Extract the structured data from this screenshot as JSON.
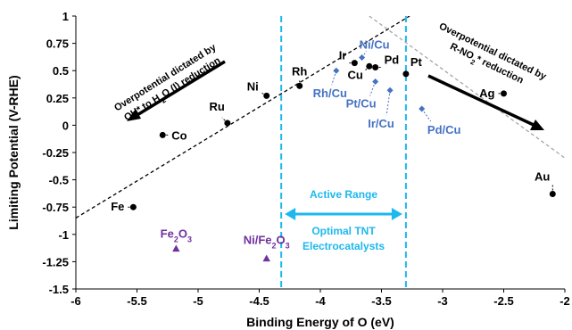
{
  "chart_data": {
    "type": "scatter",
    "xlabel": "Binding Energy of O (eV)",
    "ylabel": "Limiting Potential (V-RHE)",
    "xlim": [
      -6,
      -2
    ],
    "ylim": [
      -1.5,
      1
    ],
    "x_ticks": [
      "-6",
      "-5.5",
      "-5",
      "-4.5",
      "-4",
      "-3.5",
      "-3",
      "-2.5",
      "-2"
    ],
    "y_ticks": [
      "1",
      "0.75",
      "0.5",
      "0.25",
      "0",
      "-0.25",
      "-0.5",
      "-0.75",
      "-1",
      "-1.25",
      "-1.5"
    ],
    "grid": false,
    "colors": {
      "metal": "#000000",
      "alloy": "#4472C4",
      "oxide": "#7030A0",
      "range": "#1DB8EE",
      "right_line": "#A6A6A6"
    },
    "series": [
      {
        "marker": "circle",
        "color": "#000000",
        "points": [
          {
            "label": "Fe",
            "x": -5.53,
            "y": -0.75
          },
          {
            "label": "Co",
            "x": -5.29,
            "y": -0.09
          },
          {
            "label": "Ru",
            "x": -4.76,
            "y": 0.02
          },
          {
            "label": "Ni",
            "x": -4.44,
            "y": 0.27
          },
          {
            "label": "Rh",
            "x": -4.17,
            "y": 0.36
          },
          {
            "label": "Ir",
            "x": -3.72,
            "y": 0.57
          },
          {
            "label": "Cu",
            "x": -3.6,
            "y": 0.54
          },
          {
            "label": "Pd",
            "x": -3.55,
            "y": 0.53
          },
          {
            "label": "Pt",
            "x": -3.3,
            "y": 0.47
          },
          {
            "label": "Ag",
            "x": -2.5,
            "y": 0.29
          },
          {
            "label": "Au",
            "x": -2.1,
            "y": -0.63
          }
        ]
      },
      {
        "marker": "diamond",
        "color": "#4472C4",
        "points": [
          {
            "label": "Rh/Cu",
            "x": -3.87,
            "y": 0.5
          },
          {
            "label": "Ni/Cu",
            "x": -3.66,
            "y": 0.62
          },
          {
            "label": "Pt/Cu",
            "x": -3.55,
            "y": 0.4
          },
          {
            "label": "Ir/Cu",
            "x": -3.43,
            "y": 0.32
          },
          {
            "label": "Pd/Cu",
            "x": -3.17,
            "y": 0.15
          }
        ]
      },
      {
        "marker": "triangle",
        "color": "#7030A0",
        "points": [
          {
            "label": "Fe2O3",
            "x": -5.18,
            "y": -1.13,
            "base": "Fe",
            "sub1": "2",
            "mid": "O",
            "sub2": "3"
          },
          {
            "label": "Ni/Fe2O3",
            "x": -4.44,
            "y": -1.22,
            "base": "Ni/Fe",
            "sub1": "2",
            "mid": "O",
            "sub2": "3"
          }
        ]
      }
    ],
    "trendlines": [
      {
        "name": "left",
        "style": "dashed",
        "color": "#000000",
        "x1": -6,
        "y1": -0.85,
        "x2": -3.27,
        "y2": 1.0
      },
      {
        "name": "right",
        "style": "dashed",
        "color": "#A6A6A6",
        "x1": -3.6,
        "y1": 1.0,
        "x2": -2,
        "y2": -0.3
      }
    ],
    "vertical_lines": [
      {
        "x": -4.32,
        "style": "dashed",
        "color": "#1DB8EE"
      },
      {
        "x": -3.3,
        "style": "dashed",
        "color": "#1DB8EE"
      }
    ],
    "annotations": {
      "left_line1": "Overpotential dictated by",
      "left_line2a": "OH* to H",
      "left_line2sub": "2",
      "left_line2b": "O (l) reduction",
      "right_line1": "Overpotential dictated by",
      "right_line2a": "R-NO",
      "right_line2sub": "2",
      "right_line2b": "* reduction",
      "active_range": "Active Range",
      "optimal_line1": "Optimal TNT",
      "optimal_line2": "Electrocatalysts"
    }
  }
}
